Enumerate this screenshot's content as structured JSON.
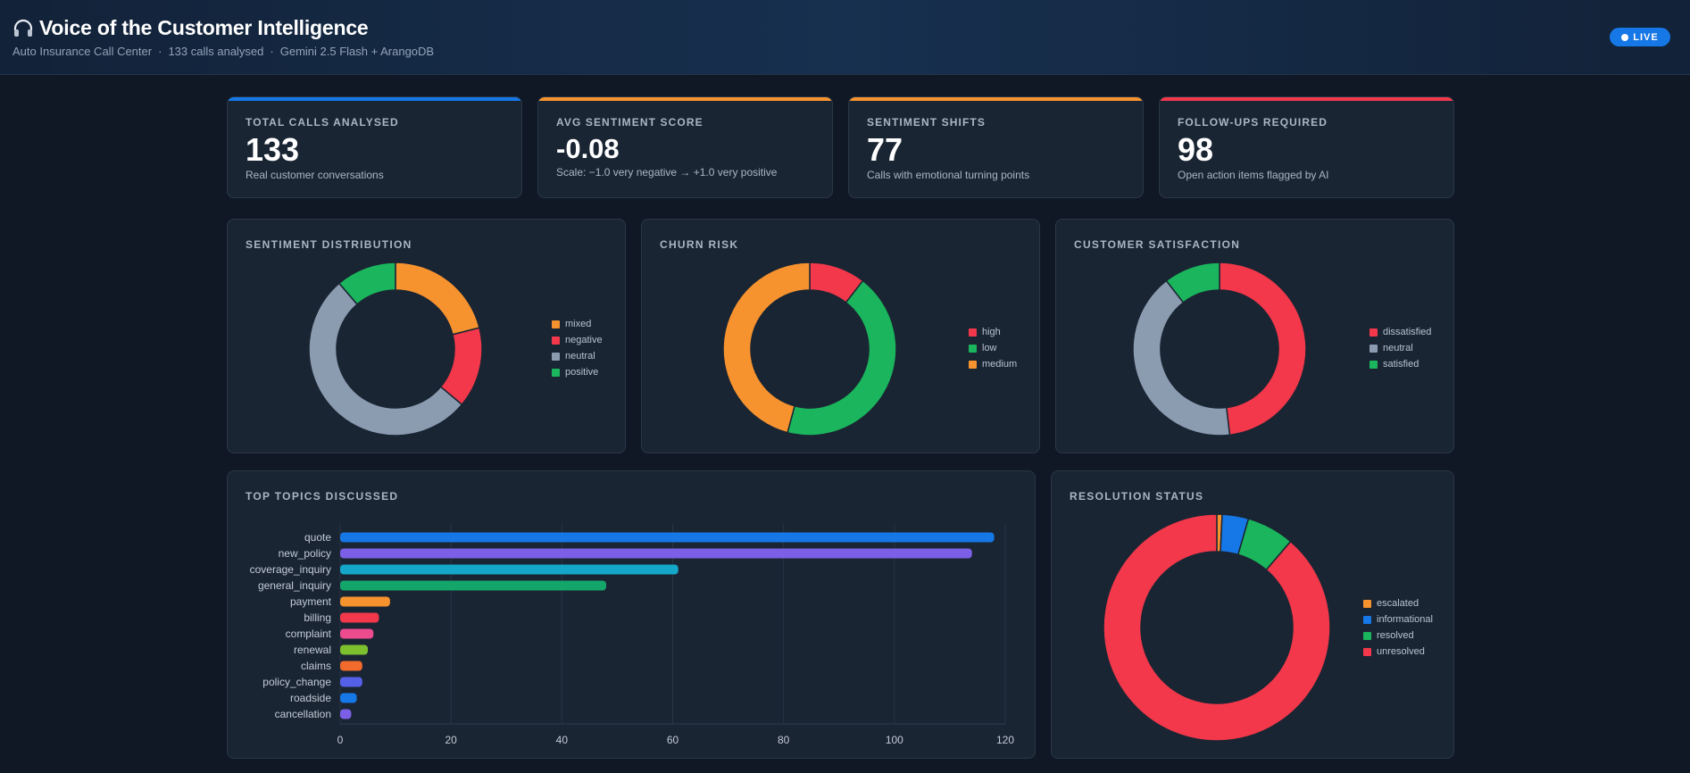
{
  "header": {
    "title": "Voice of the Customer Intelligence",
    "icon": "headphones-icon",
    "subtitle_parts": [
      "Auto Insurance Call Center",
      "133 calls analysed",
      "Gemini 2.5 Flash + ArangoDB"
    ],
    "separator": "·",
    "live_label": "LIVE"
  },
  "kpis": [
    {
      "label": "TOTAL CALLS ANALYSED",
      "value": "133",
      "desc": "Real customer conversations",
      "accent": "#1677e6"
    },
    {
      "label": "AVG SENTIMENT SCORE",
      "value": "-0.08",
      "desc": "Scale: −1.0 very negative → +1.0 very positive",
      "accent": "#f7932f"
    },
    {
      "label": "SENTIMENT SHIFTS",
      "value": "77",
      "desc": "Calls with emotional turning points",
      "accent": "#f7932f"
    },
    {
      "label": "FOLLOW-UPS REQUIRED",
      "value": "98",
      "desc": "Open action items flagged by AI",
      "accent": "#f2384a"
    }
  ],
  "panels": {
    "sentiment": {
      "title": "SENTIMENT DISTRIBUTION"
    },
    "churn": {
      "title": "CHURN RISK"
    },
    "satisfaction": {
      "title": "CUSTOMER SATISFACTION"
    },
    "topics": {
      "title": "TOP TOPICS DISCUSSED"
    },
    "resolution": {
      "title": "RESOLUTION STATUS"
    }
  },
  "chart_data": [
    {
      "id": "sentiment",
      "type": "pie",
      "categories": [
        "mixed",
        "negative",
        "neutral",
        "positive"
      ],
      "values": [
        28,
        20,
        70,
        15
      ],
      "colors": [
        "#f7932f",
        "#f2384a",
        "#8b9bb0",
        "#1ab55c"
      ],
      "legend": "right"
    },
    {
      "id": "churn",
      "type": "pie",
      "categories": [
        "high",
        "low",
        "medium"
      ],
      "values": [
        14,
        58,
        61
      ],
      "colors": [
        "#f2384a",
        "#1ab55c",
        "#f7932f"
      ],
      "legend": "right"
    },
    {
      "id": "satisfaction",
      "type": "pie",
      "categories": [
        "dissatisfied",
        "neutral",
        "satisfied"
      ],
      "values": [
        64,
        55,
        14
      ],
      "colors": [
        "#f2384a",
        "#8b9bb0",
        "#1ab55c"
      ],
      "legend": "right"
    },
    {
      "id": "topics",
      "type": "bar",
      "orientation": "horizontal",
      "categories": [
        "quote",
        "new_policy",
        "coverage_inquiry",
        "general_inquiry",
        "payment",
        "billing",
        "complaint",
        "renewal",
        "claims",
        "policy_change",
        "roadside",
        "cancellation"
      ],
      "values": [
        118,
        114,
        61,
        48,
        9,
        7,
        6,
        5,
        4,
        4,
        3,
        2
      ],
      "colors": [
        "#1677e6",
        "#7b5fe6",
        "#14a7c9",
        "#14a56a",
        "#f7932f",
        "#f2384a",
        "#ec4b8e",
        "#7cc02e",
        "#f26a2c",
        "#5560e8",
        "#1677e6",
        "#7b5fe6"
      ],
      "xlim": [
        0,
        120
      ],
      "xticks": [
        0,
        20,
        40,
        60,
        80,
        100,
        120
      ],
      "grid": true
    },
    {
      "id": "resolution",
      "type": "pie",
      "categories": [
        "escalated",
        "informational",
        "resolved",
        "unresolved"
      ],
      "values": [
        1,
        5,
        9,
        118
      ],
      "colors": [
        "#f7932f",
        "#1677e6",
        "#1ab55c",
        "#f2384a"
      ],
      "legend": "right"
    }
  ]
}
